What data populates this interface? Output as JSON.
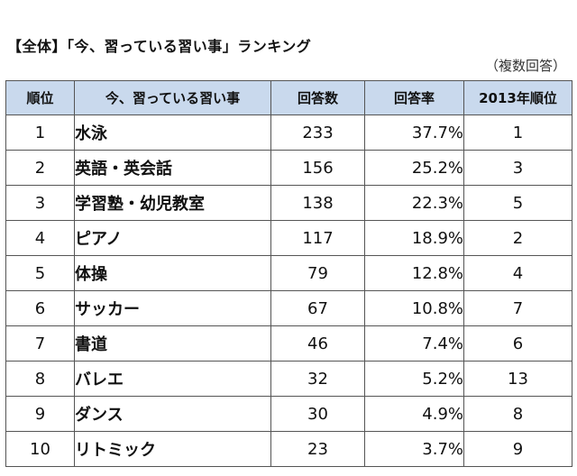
{
  "title": "【全体】「今、習っている習い事」ランキング",
  "note": "（複数回答）",
  "table": {
    "headers": [
      "順位",
      "今、習っている習い事",
      "回答数",
      "回答率",
      "2013年順位"
    ],
    "rows": [
      {
        "rank": "1",
        "name": "水泳",
        "count": "233",
        "rate": "37.7%",
        "prev": "1"
      },
      {
        "rank": "2",
        "name": "英語・英会話",
        "count": "156",
        "rate": "25.2%",
        "prev": "3"
      },
      {
        "rank": "3",
        "name": "学習塾・幼児教室",
        "count": "138",
        "rate": "22.3%",
        "prev": "5"
      },
      {
        "rank": "4",
        "name": "ピアノ",
        "count": "117",
        "rate": "18.9%",
        "prev": "2"
      },
      {
        "rank": "5",
        "name": "体操",
        "count": "79",
        "rate": "12.8%",
        "prev": "4"
      },
      {
        "rank": "6",
        "name": "サッカー",
        "count": "67",
        "rate": "10.8%",
        "prev": "7"
      },
      {
        "rank": "7",
        "name": "書道",
        "count": "46",
        "rate": "7.4%",
        "prev": "6"
      },
      {
        "rank": "8",
        "name": "バレエ",
        "count": "32",
        "rate": "5.2%",
        "prev": "13"
      },
      {
        "rank": "9",
        "name": "ダンス",
        "count": "30",
        "rate": "4.9%",
        "prev": "8"
      },
      {
        "rank": "10",
        "name": "リトミック",
        "count": "23",
        "rate": "3.7%",
        "prev": "9"
      }
    ]
  },
  "colors": {
    "header_bg": "#c9d9ed",
    "border": "#555555",
    "text": "#111111"
  }
}
